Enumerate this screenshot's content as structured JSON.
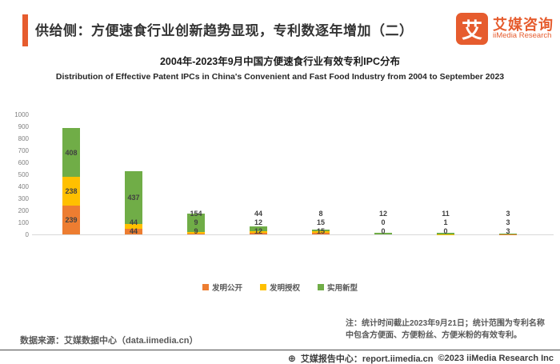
{
  "header": {
    "title": "供给侧：方便速食行业创新趋势显现，专利数逐年增加（二）",
    "logo": {
      "mark": "艾",
      "name_cn": "艾媒咨询",
      "name_en": "iiMedia Research"
    }
  },
  "chart": {
    "title_cn": "2004年-2023年9月中国方便速食行业有效专利IPC分布",
    "title_en": "Distribution of Effective Patent IPCs in China's Convenient and Fast Food Industry from 2004 to September 2023"
  },
  "chart_data": {
    "type": "bar",
    "stacked": true,
    "categories": [
      "",
      "",
      "",
      "",
      "",
      "",
      "",
      ""
    ],
    "series": [
      {
        "name": "发明公开",
        "color": "#ED7D31",
        "values": [
          239,
          44,
          9,
          12,
          15,
          0,
          0,
          3
        ]
      },
      {
        "name": "发明授权",
        "color": "#FFC000",
        "values": [
          238,
          44,
          9,
          12,
          15,
          0,
          1,
          3
        ]
      },
      {
        "name": "实用新型",
        "color": "#70AD47",
        "values": [
          408,
          437,
          154,
          44,
          8,
          12,
          11,
          3
        ]
      }
    ],
    "ylim": [
      0,
      1000
    ],
    "yticks": [
      0,
      100,
      200,
      300,
      400,
      500,
      600,
      700,
      800,
      900,
      1000
    ],
    "grid": false,
    "legend_position": "bottom",
    "x_axis_labels_visible": false
  },
  "footer": {
    "source": "数据来源：艾媒数据中心（data.iimedia.cn）",
    "note": "注：统计时间截止2023年9月21日；统计范围为专利名称中包含方便面、方便粉丝、方便米粉的有效专利。",
    "report_center": "艾媒报告中心：report.iimedia.cn",
    "copyright": "©2023  iiMedia Research  Inc"
  },
  "colors": {
    "brand_orange": "#E65C2E",
    "bar_orange": "#ED7D31",
    "bar_yellow": "#FFC000",
    "bar_green": "#70AD47",
    "axis_line": "#d9d9d9",
    "label_text": "#404040"
  }
}
